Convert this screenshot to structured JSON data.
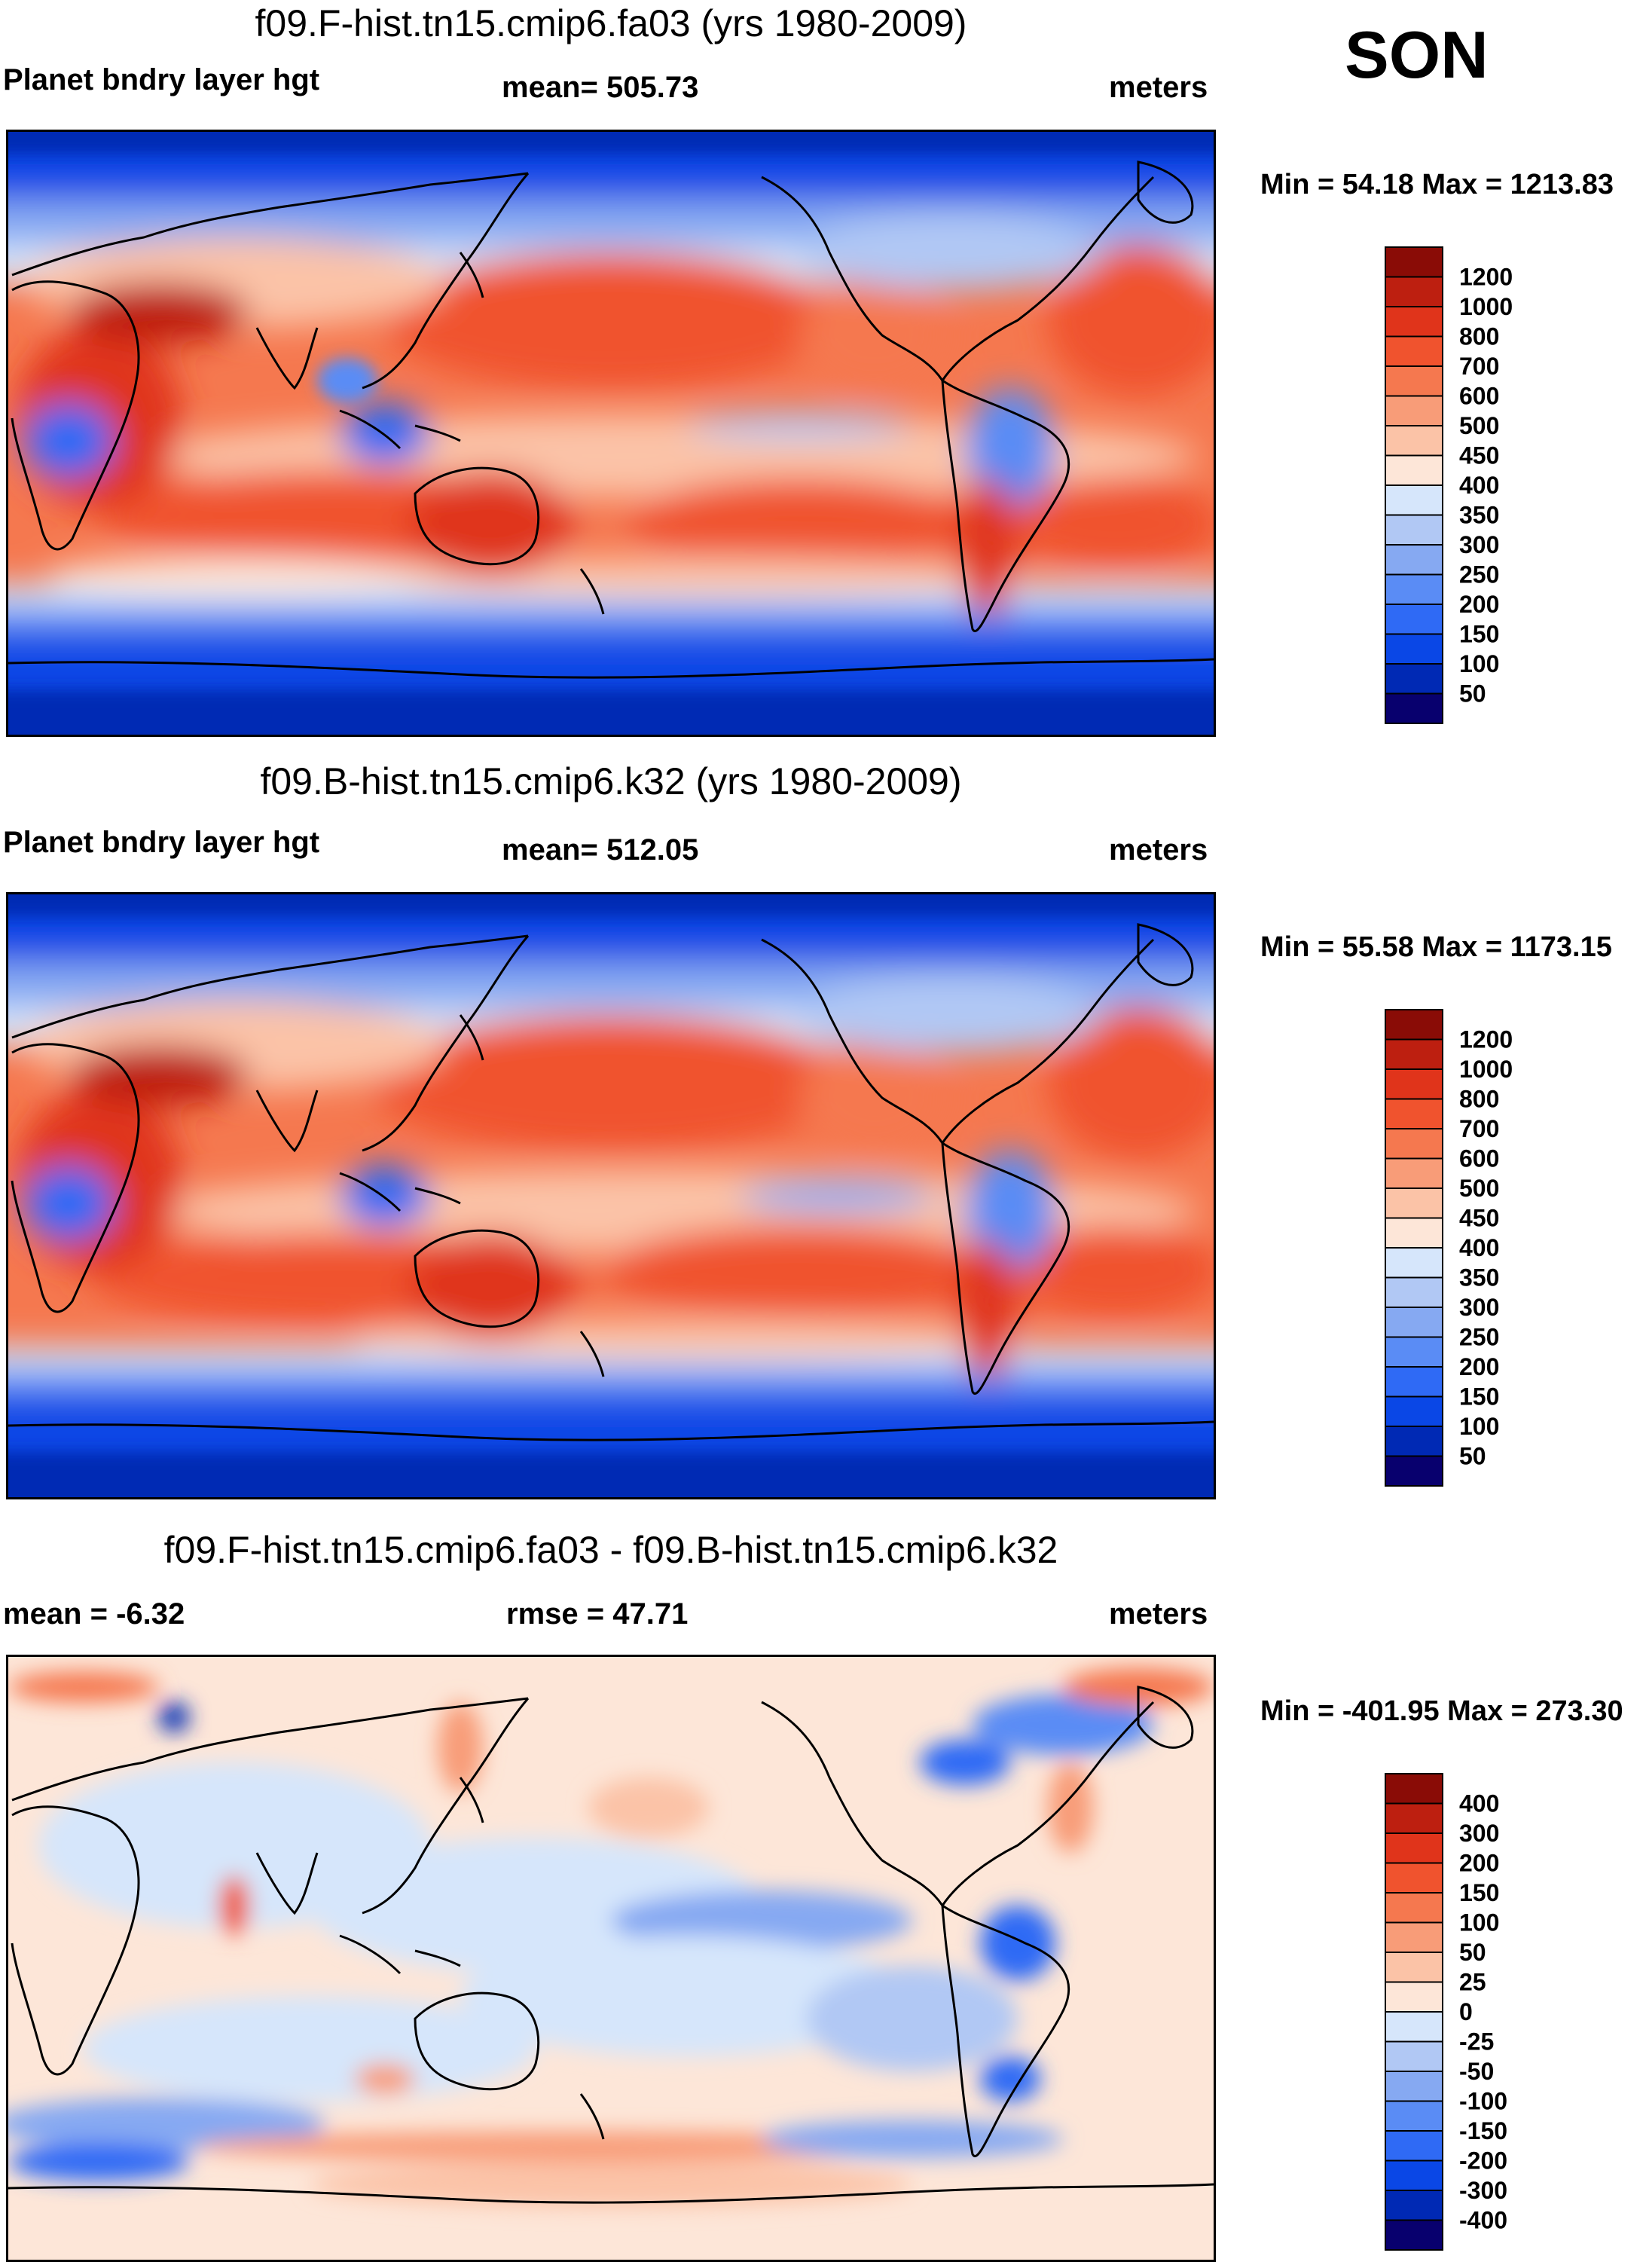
{
  "season": "SON",
  "panels": [
    {
      "title": "f09.F-hist.tn15.cmip6.fa03 (yrs 1980-2009)",
      "left_label": "Planet bndry layer hgt",
      "center_label": "mean= 505.73",
      "right_label": "meters",
      "minmax": "Min =  54.18 Max = 1213.83"
    },
    {
      "title": "f09.B-hist.tn15.cmip6.k32 (yrs 1980-2009)",
      "left_label": "Planet bndry layer hgt",
      "center_label": "mean= 512.05",
      "right_label": "meters",
      "minmax": "Min =  55.58 Max = 1173.15"
    },
    {
      "title": "f09.F-hist.tn15.cmip6.fa03 - f09.B-hist.tn15.cmip6.k32",
      "left_label": "mean =  -6.32",
      "center_label": "rmse =  47.71",
      "right_label": "meters",
      "minmax": "Min = -401.95 Max = 273.30"
    }
  ],
  "colors": {
    "abs_scale": [
      "#08006e",
      "#0029b4",
      "#0a47e6",
      "#2f6af5",
      "#5a8cf5",
      "#86a9f2",
      "#b1c8f4",
      "#d6e6fb",
      "#fde6d8",
      "#fbc3a7",
      "#f89c78",
      "#f5784f",
      "#f0532e",
      "#e0341b",
      "#bd1f10",
      "#8a0c06"
    ],
    "diff_scale": [
      "#08006e",
      "#0029b4",
      "#0a47e6",
      "#2f6af5",
      "#5a8cf5",
      "#86a9f2",
      "#b1c8f4",
      "#d6e6fb",
      "#fde6d8",
      "#fbc3a7",
      "#f89c78",
      "#f5784f",
      "#f0532e",
      "#e0341b",
      "#bd1f10",
      "#8a0c06"
    ]
  },
  "chart_data": [
    {
      "type": "heatmap",
      "title": "f09.F-hist.tn15.cmip6.fa03 (yrs 1980-2009)",
      "variable": "Planet bndry layer hgt",
      "units": "meters",
      "mean": 505.73,
      "min": 54.18,
      "max": 1213.83,
      "levels": [
        50,
        100,
        150,
        200,
        250,
        300,
        350,
        400,
        450,
        500,
        600,
        700,
        800,
        1000,
        1200
      ],
      "level_labels": [
        "1200",
        "1000",
        "800",
        "700",
        "600",
        "500",
        "450",
        "400",
        "350",
        "300",
        "250",
        "200",
        "150",
        "100",
        "50"
      ]
    },
    {
      "type": "heatmap",
      "title": "f09.B-hist.tn15.cmip6.k32 (yrs 1980-2009)",
      "variable": "Planet bndry layer hgt",
      "units": "meters",
      "mean": 512.05,
      "min": 55.58,
      "max": 1173.15,
      "levels": [
        50,
        100,
        150,
        200,
        250,
        300,
        350,
        400,
        450,
        500,
        600,
        700,
        800,
        1000,
        1200
      ],
      "level_labels": [
        "1200",
        "1000",
        "800",
        "700",
        "600",
        "500",
        "450",
        "400",
        "350",
        "300",
        "250",
        "200",
        "150",
        "100",
        "50"
      ]
    },
    {
      "type": "heatmap",
      "title": "f09.F-hist.tn15.cmip6.fa03 - f09.B-hist.tn15.cmip6.k32",
      "units": "meters",
      "mean": -6.32,
      "rmse": 47.71,
      "min": -401.95,
      "max": 273.3,
      "levels": [
        -400,
        -300,
        -200,
        -150,
        -100,
        -50,
        -25,
        0,
        25,
        50,
        100,
        150,
        200,
        300,
        400
      ],
      "level_labels": [
        "400",
        "300",
        "200",
        "150",
        "100",
        "50",
        "25",
        "0",
        "-25",
        "-50",
        "-100",
        "-150",
        "-200",
        "-300",
        "-400"
      ]
    }
  ]
}
